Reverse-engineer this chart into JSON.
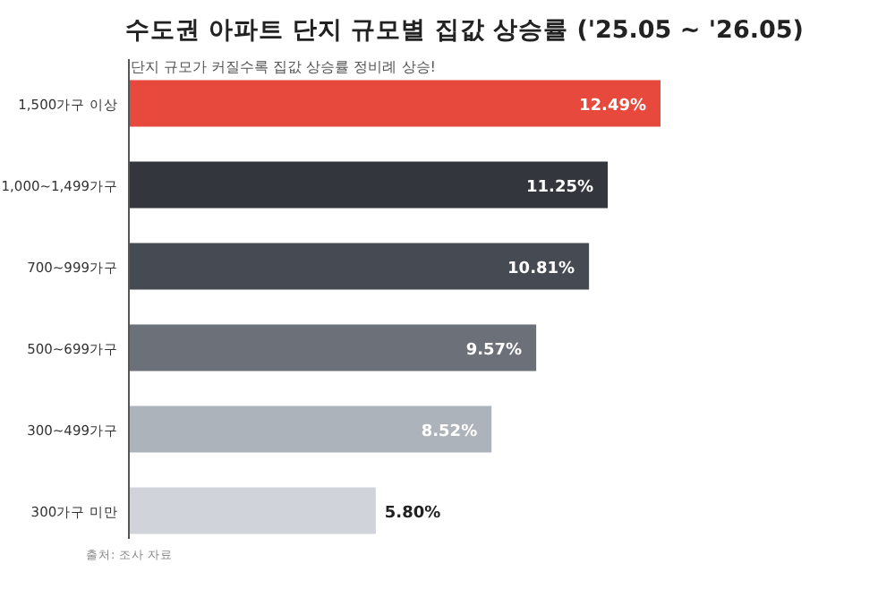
{
  "chart_data": {
    "type": "bar",
    "orientation": "horizontal",
    "title": "수도권 아파트 단지 규모별 집값 상승률 ('25.05 ~ '26.05)",
    "subtitle": "단지 규모가 커질수록 집값 상승률 정비례 상승!",
    "annotations": [
      "출처: 조사 자료"
    ],
    "categories": [
      "1,500가구 이상",
      "1,000~1,499가구",
      "700~999가구",
      "500~699가구",
      "300~499가구",
      "300가구 미만"
    ],
    "values": [
      12.49,
      11.25,
      10.81,
      9.57,
      8.52,
      5.8
    ],
    "value_labels": [
      "12.49%",
      "11.25%",
      "10.81%",
      "9.57%",
      "8.52%",
      "5.80%"
    ],
    "colors": [
      "#e8493d",
      "#33363d",
      "#464a53",
      "#6b7079",
      "#adb3ba",
      "#d0d4da"
    ]
  }
}
